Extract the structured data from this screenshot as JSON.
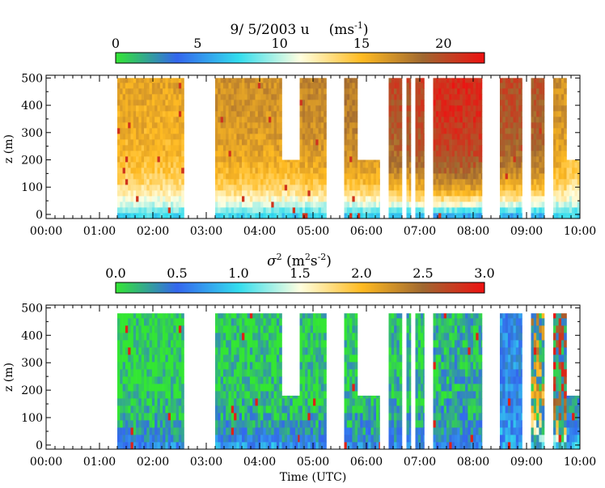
{
  "chart_data": [
    {
      "type": "heatmap",
      "title": "9/ 5/2003  u",
      "unit_base": "(ms",
      "unit_exp": "-1",
      "unit_close": ")",
      "colorbar": {
        "ticks": [
          "0",
          "5",
          "10",
          "15",
          "20"
        ],
        "tick_values": [
          0,
          5,
          10,
          15,
          20
        ],
        "range": [
          0,
          22.5
        ],
        "colors": [
          "#33e633",
          "#3366ee",
          "#33ddee",
          "#ffffe0",
          "#ffbb22",
          "#a06830",
          "#ee1111"
        ]
      },
      "ylabel": "z (m)",
      "y_ticks": [
        "0",
        "100",
        "200",
        "300",
        "400",
        "500"
      ],
      "y_tick_values": [
        0,
        100,
        200,
        300,
        400,
        500
      ],
      "ylim": [
        -15,
        510
      ],
      "x_ticks": [
        "00:00",
        "01:00",
        "02:00",
        "03:00",
        "04:00",
        "05:00",
        "06:00",
        "07:00",
        "08:00",
        "09:00",
        "10:00"
      ],
      "x_tick_values": [
        0,
        1,
        2,
        3,
        4,
        5,
        6,
        7,
        8,
        9,
        10
      ],
      "xlim": [
        0,
        10
      ],
      "xlabel": "",
      "segments": [
        {
          "start": "01:20",
          "end": "02:35",
          "top_m": 500,
          "surface_u": 7.5,
          "upper_u": 15.5
        },
        {
          "start": "03:10",
          "end": "04:25",
          "top_m": 500,
          "surface_u": 7.5,
          "upper_u": 16.5
        },
        {
          "start": "04:25",
          "end": "04:45",
          "top_m": 200,
          "surface_u": 7.0,
          "upper_u": 16.5
        },
        {
          "start": "04:45",
          "end": "05:15",
          "top_m": 500,
          "surface_u": 7.0,
          "upper_u": 17.0
        },
        {
          "start": "05:35",
          "end": "05:50",
          "top_m": 500,
          "surface_u": 7.0,
          "upper_u": 17.5
        },
        {
          "start": "05:50",
          "end": "06:15",
          "top_m": 200,
          "surface_u": 7.0,
          "upper_u": 17.5
        },
        {
          "start": "06:25",
          "end": "06:40",
          "top_m": 500,
          "surface_u": 6.5,
          "upper_u": 19.5
        },
        {
          "start": "06:45",
          "end": "06:50",
          "top_m": 500,
          "surface_u": 6.5,
          "upper_u": 19.5
        },
        {
          "start": "06:55",
          "end": "07:05",
          "top_m": 500,
          "surface_u": 6.5,
          "upper_u": 20.0
        },
        {
          "start": "07:15",
          "end": "08:10",
          "top_m": 500,
          "surface_u": 6.0,
          "upper_u": 21.0
        },
        {
          "start": "08:30",
          "end": "08:55",
          "top_m": 500,
          "surface_u": 6.0,
          "upper_u": 19.5
        },
        {
          "start": "09:05",
          "end": "09:20",
          "top_m": 500,
          "surface_u": 6.0,
          "upper_u": 19.0
        },
        {
          "start": "09:30",
          "end": "09:45",
          "top_m": 500,
          "surface_u": 7.0,
          "upper_u": 16.5
        },
        {
          "start": "09:45",
          "end": "10:00",
          "top_m": 200,
          "surface_u": 7.5,
          "upper_u": 15.0
        }
      ]
    },
    {
      "type": "heatmap",
      "title": "",
      "sigma_symbol": "σ",
      "sigma_exp": "2",
      "unit_open": " (m",
      "unit_m_exp": "2",
      "unit_s": "s",
      "unit_s_exp": "-2",
      "unit_close": ")",
      "colorbar": {
        "ticks": [
          "0.0",
          "0.5",
          "1.0",
          "1.5",
          "2.0",
          "2.5",
          "3.0"
        ],
        "tick_values": [
          0,
          0.5,
          1.0,
          1.5,
          2.0,
          2.5,
          3.0
        ],
        "range": [
          0,
          3.0
        ],
        "colors": [
          "#33e633",
          "#3366ee",
          "#33ddee",
          "#ffffe0",
          "#ffbb22",
          "#a06830",
          "#ee1111"
        ]
      },
      "ylabel": "z (m)",
      "y_ticks": [
        "0",
        "100",
        "200",
        "300",
        "400",
        "500"
      ],
      "y_tick_values": [
        0,
        100,
        200,
        300,
        400,
        500
      ],
      "ylim": [
        -15,
        510
      ],
      "x_ticks": [
        "00:00",
        "01:00",
        "02:00",
        "03:00",
        "04:00",
        "05:00",
        "06:00",
        "07:00",
        "08:00",
        "09:00",
        "10:00"
      ],
      "x_tick_values": [
        0,
        1,
        2,
        3,
        4,
        5,
        6,
        7,
        8,
        9,
        10
      ],
      "xlim": [
        0,
        10
      ],
      "xlabel": "Time (UTC)",
      "segments": [
        {
          "start": "01:20",
          "end": "02:35",
          "top_m": 480,
          "surface_sigma": 0.6,
          "upper_sigma": 0.05
        },
        {
          "start": "03:10",
          "end": "04:25",
          "top_m": 480,
          "surface_sigma": 0.7,
          "upper_sigma": 0.1
        },
        {
          "start": "04:25",
          "end": "04:45",
          "top_m": 180,
          "surface_sigma": 0.6,
          "upper_sigma": 0.1
        },
        {
          "start": "04:45",
          "end": "05:15",
          "top_m": 480,
          "surface_sigma": 0.6,
          "upper_sigma": 0.1
        },
        {
          "start": "05:35",
          "end": "05:50",
          "top_m": 480,
          "surface_sigma": 0.6,
          "upper_sigma": 0.1
        },
        {
          "start": "05:50",
          "end": "06:15",
          "top_m": 180,
          "surface_sigma": 0.6,
          "upper_sigma": 0.1
        },
        {
          "start": "06:25",
          "end": "06:40",
          "top_m": 480,
          "surface_sigma": 0.6,
          "upper_sigma": 0.15
        },
        {
          "start": "06:45",
          "end": "06:50",
          "top_m": 480,
          "surface_sigma": 0.6,
          "upper_sigma": 0.15
        },
        {
          "start": "06:55",
          "end": "07:05",
          "top_m": 480,
          "surface_sigma": 0.6,
          "upper_sigma": 0.15
        },
        {
          "start": "07:15",
          "end": "08:10",
          "top_m": 480,
          "surface_sigma": 0.6,
          "upper_sigma": 0.2
        },
        {
          "start": "08:30",
          "end": "08:55",
          "top_m": 480,
          "surface_sigma": 0.8,
          "upper_sigma": 0.6
        },
        {
          "start": "09:05",
          "end": "09:20",
          "top_m": 480,
          "surface_sigma": 0.9,
          "upper_sigma": 2.2
        },
        {
          "start": "09:30",
          "end": "09:45",
          "top_m": 480,
          "surface_sigma": 0.9,
          "upper_sigma": 2.8
        },
        {
          "start": "09:45",
          "end": "10:00",
          "top_m": 180,
          "surface_sigma": 0.9,
          "upper_sigma": 0.3
        }
      ]
    }
  ]
}
